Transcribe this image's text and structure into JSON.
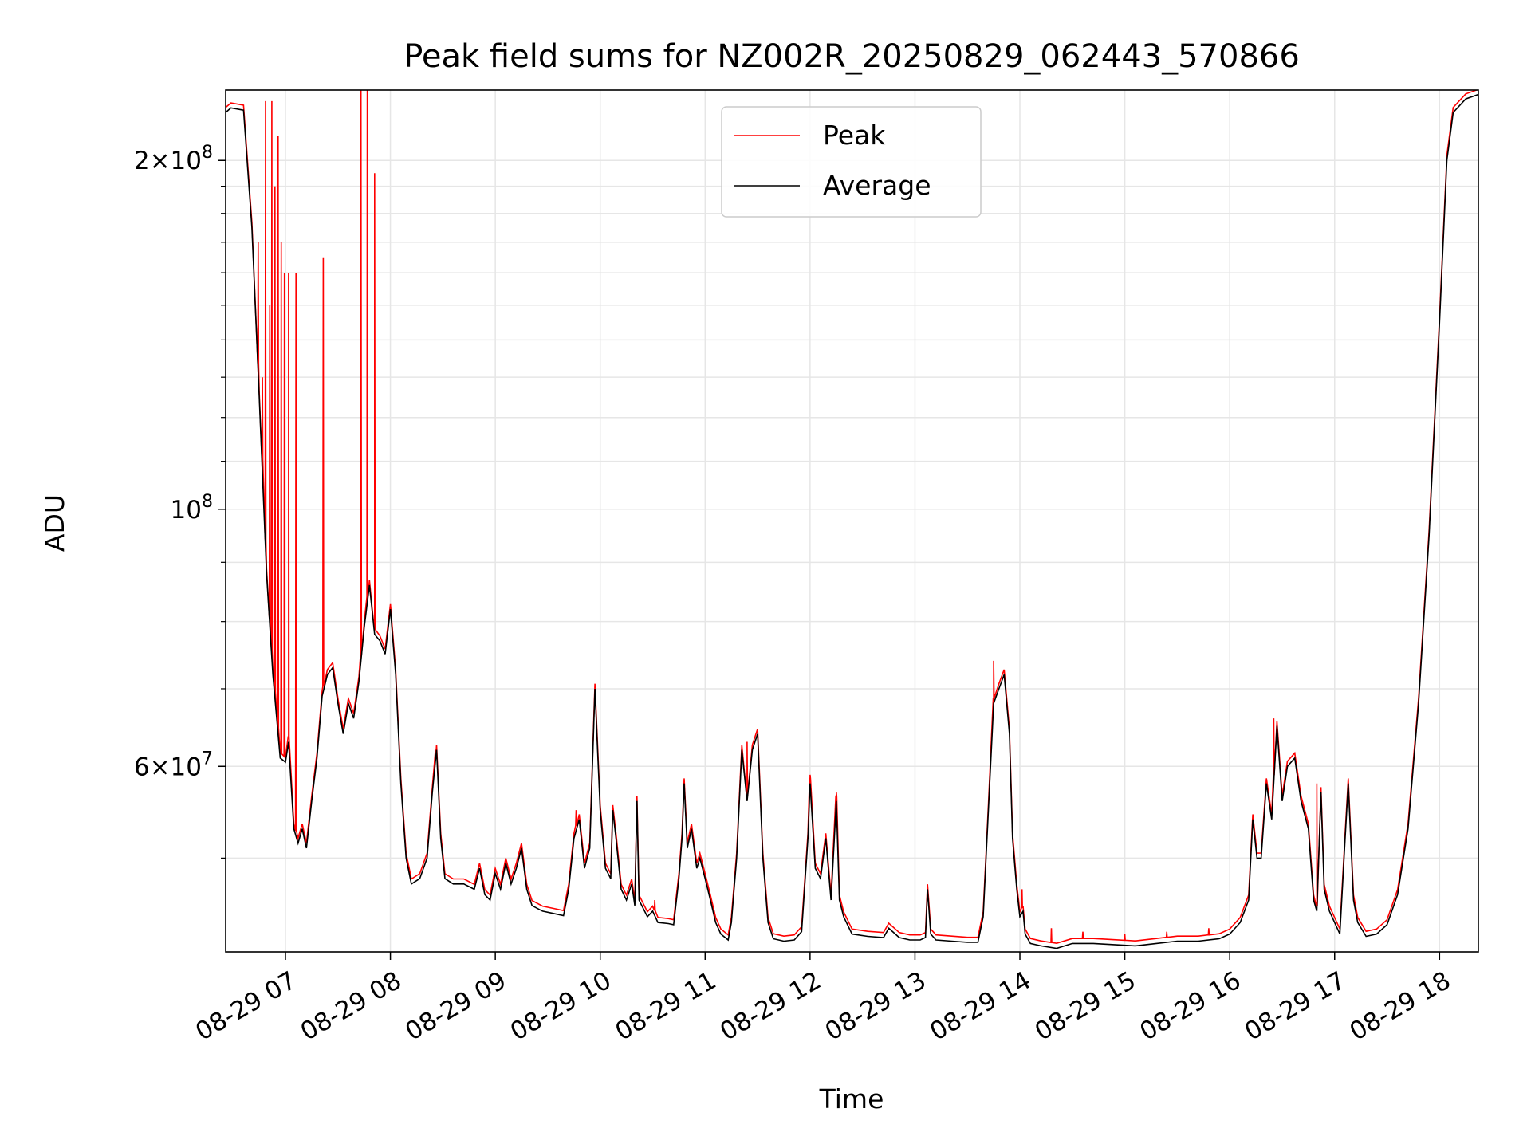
{
  "chart_data": {
    "type": "line",
    "title": "Peak field sums for NZ002R_20250829_062443_570866",
    "xlabel": "Time",
    "ylabel": "ADU",
    "x_ticks": [
      "08-29 07",
      "08-29 08",
      "08-29 09",
      "08-29 10",
      "08-29 11",
      "08-29 12",
      "08-29 13",
      "08-29 14",
      "08-29 15",
      "08-29 16",
      "08-29 17",
      "08-29 18"
    ],
    "y_scale": "log",
    "y_ticks": [
      {
        "value": 200000000,
        "base": "2×10",
        "exp": "8"
      },
      {
        "value": 100000000,
        "base": "10",
        "exp": "8"
      },
      {
        "value": 60000000,
        "base": "6×10",
        "exp": "7"
      }
    ],
    "xlim_hours": [
      6.43,
      18.37
    ],
    "ylim": [
      41500000,
      230000000
    ],
    "grid": true,
    "legend_position": "top-center",
    "series": [
      {
        "name": "Average",
        "color": "#000000",
        "points": [
          [
            6.43,
            220000000
          ],
          [
            6.48,
            222000000
          ],
          [
            6.6,
            221000000
          ],
          [
            6.68,
            175000000
          ],
          [
            6.75,
            125000000
          ],
          [
            6.82,
            88000000
          ],
          [
            6.88,
            72000000
          ],
          [
            6.95,
            61000000
          ],
          [
            7.0,
            60500000
          ],
          [
            7.03,
            63000000
          ],
          [
            7.08,
            53000000
          ],
          [
            7.12,
            51500000
          ],
          [
            7.16,
            53000000
          ],
          [
            7.2,
            51000000
          ],
          [
            7.25,
            56000000
          ],
          [
            7.3,
            61000000
          ],
          [
            7.35,
            69000000
          ],
          [
            7.4,
            72000000
          ],
          [
            7.45,
            73000000
          ],
          [
            7.5,
            68000000
          ],
          [
            7.55,
            64000000
          ],
          [
            7.6,
            68000000
          ],
          [
            7.65,
            66000000
          ],
          [
            7.7,
            71000000
          ],
          [
            7.75,
            79000000
          ],
          [
            7.8,
            86000000
          ],
          [
            7.85,
            78000000
          ],
          [
            7.9,
            77000000
          ],
          [
            7.95,
            75000000
          ],
          [
            8.0,
            82000000
          ],
          [
            8.05,
            72000000
          ],
          [
            8.1,
            58000000
          ],
          [
            8.15,
            50000000
          ],
          [
            8.2,
            47500000
          ],
          [
            8.28,
            48000000
          ],
          [
            8.35,
            50000000
          ],
          [
            8.4,
            57000000
          ],
          [
            8.44,
            62000000
          ],
          [
            8.48,
            52000000
          ],
          [
            8.52,
            48000000
          ],
          [
            8.6,
            47500000
          ],
          [
            8.7,
            47500000
          ],
          [
            8.8,
            47000000
          ],
          [
            8.85,
            49000000
          ],
          [
            8.9,
            46500000
          ],
          [
            8.95,
            46000000
          ],
          [
            9.0,
            48500000
          ],
          [
            9.05,
            47000000
          ],
          [
            9.1,
            49500000
          ],
          [
            9.15,
            47500000
          ],
          [
            9.2,
            49000000
          ],
          [
            9.25,
            51000000
          ],
          [
            9.3,
            47000000
          ],
          [
            9.35,
            45500000
          ],
          [
            9.45,
            45000000
          ],
          [
            9.55,
            44800000
          ],
          [
            9.65,
            44600000
          ],
          [
            9.7,
            47000000
          ],
          [
            9.75,
            52000000
          ],
          [
            9.8,
            54000000
          ],
          [
            9.85,
            49000000
          ],
          [
            9.9,
            51000000
          ],
          [
            9.95,
            70000000
          ],
          [
            10.0,
            55000000
          ],
          [
            10.05,
            49000000
          ],
          [
            10.1,
            48000000
          ],
          [
            10.12,
            55000000
          ],
          [
            10.15,
            52000000
          ],
          [
            10.2,
            47000000
          ],
          [
            10.25,
            46000000
          ],
          [
            10.3,
            47500000
          ],
          [
            10.33,
            45500000
          ],
          [
            10.35,
            56000000
          ],
          [
            10.37,
            46000000
          ],
          [
            10.45,
            44500000
          ],
          [
            10.5,
            45000000
          ],
          [
            10.55,
            44000000
          ],
          [
            10.65,
            43900000
          ],
          [
            10.7,
            43800000
          ],
          [
            10.75,
            48000000
          ],
          [
            10.78,
            52000000
          ],
          [
            10.8,
            58000000
          ],
          [
            10.83,
            51000000
          ],
          [
            10.87,
            53000000
          ],
          [
            10.92,
            49000000
          ],
          [
            10.95,
            50000000
          ],
          [
            11.0,
            48000000
          ],
          [
            11.05,
            46000000
          ],
          [
            11.1,
            44000000
          ],
          [
            11.15,
            43000000
          ],
          [
            11.22,
            42500000
          ],
          [
            11.25,
            44000000
          ],
          [
            11.3,
            50000000
          ],
          [
            11.35,
            62000000
          ],
          [
            11.4,
            56000000
          ],
          [
            11.45,
            62000000
          ],
          [
            11.5,
            64000000
          ],
          [
            11.55,
            50000000
          ],
          [
            11.6,
            44000000
          ],
          [
            11.65,
            42600000
          ],
          [
            11.75,
            42400000
          ],
          [
            11.85,
            42500000
          ],
          [
            11.92,
            43200000
          ],
          [
            11.98,
            52000000
          ],
          [
            12.0,
            58000000
          ],
          [
            12.05,
            49000000
          ],
          [
            12.1,
            48000000
          ],
          [
            12.15,
            52000000
          ],
          [
            12.2,
            46000000
          ],
          [
            12.25,
            56000000
          ],
          [
            12.28,
            46000000
          ],
          [
            12.32,
            44500000
          ],
          [
            12.4,
            43000000
          ],
          [
            12.55,
            42800000
          ],
          [
            12.7,
            42700000
          ],
          [
            12.75,
            43500000
          ],
          [
            12.85,
            42700000
          ],
          [
            12.95,
            42500000
          ],
          [
            13.05,
            42500000
          ],
          [
            13.1,
            42700000
          ],
          [
            13.12,
            47000000
          ],
          [
            13.15,
            43000000
          ],
          [
            13.2,
            42500000
          ],
          [
            13.35,
            42400000
          ],
          [
            13.5,
            42300000
          ],
          [
            13.6,
            42300000
          ],
          [
            13.65,
            44500000
          ],
          [
            13.7,
            55000000
          ],
          [
            13.75,
            68000000
          ],
          [
            13.8,
            70000000
          ],
          [
            13.85,
            72000000
          ],
          [
            13.9,
            64000000
          ],
          [
            13.93,
            52000000
          ],
          [
            13.97,
            47000000
          ],
          [
            14.0,
            44500000
          ],
          [
            14.03,
            45000000
          ],
          [
            14.05,
            43000000
          ],
          [
            14.1,
            42200000
          ],
          [
            14.2,
            42000000
          ],
          [
            14.35,
            41800000
          ],
          [
            14.5,
            42200000
          ],
          [
            14.7,
            42200000
          ],
          [
            14.9,
            42100000
          ],
          [
            15.1,
            42000000
          ],
          [
            15.3,
            42200000
          ],
          [
            15.5,
            42400000
          ],
          [
            15.7,
            42400000
          ],
          [
            15.9,
            42600000
          ],
          [
            16.0,
            43000000
          ],
          [
            16.1,
            44000000
          ],
          [
            16.18,
            46000000
          ],
          [
            16.22,
            54000000
          ],
          [
            16.26,
            50000000
          ],
          [
            16.3,
            50000000
          ],
          [
            16.35,
            58000000
          ],
          [
            16.4,
            54000000
          ],
          [
            16.45,
            65000000
          ],
          [
            16.5,
            56000000
          ],
          [
            16.55,
            60000000
          ],
          [
            16.62,
            61000000
          ],
          [
            16.68,
            56000000
          ],
          [
            16.75,
            53000000
          ],
          [
            16.8,
            46000000
          ],
          [
            16.83,
            45000000
          ],
          [
            16.87,
            57000000
          ],
          [
            16.9,
            47000000
          ],
          [
            16.95,
            45000000
          ],
          [
            17.0,
            44000000
          ],
          [
            17.05,
            43000000
          ],
          [
            17.1,
            52000000
          ],
          [
            17.13,
            58000000
          ],
          [
            17.18,
            46000000
          ],
          [
            17.22,
            44000000
          ],
          [
            17.3,
            42800000
          ],
          [
            17.4,
            43000000
          ],
          [
            17.5,
            43800000
          ],
          [
            17.6,
            46500000
          ],
          [
            17.7,
            53000000
          ],
          [
            17.8,
            68000000
          ],
          [
            17.9,
            95000000
          ],
          [
            18.0,
            145000000
          ],
          [
            18.07,
            200000000
          ],
          [
            18.13,
            220000000
          ],
          [
            18.25,
            226000000
          ],
          [
            18.37,
            228000000
          ]
        ]
      },
      {
        "name": "Peak",
        "color": "#ff0000",
        "spikes": [
          [
            6.74,
            170000000
          ],
          [
            6.78,
            130000000
          ],
          [
            6.81,
            225000000
          ],
          [
            6.85,
            150000000
          ],
          [
            6.87,
            225000000
          ],
          [
            6.9,
            190000000
          ],
          [
            6.93,
            210000000
          ],
          [
            6.96,
            170000000
          ],
          [
            6.99,
            160000000
          ],
          [
            7.03,
            160000000
          ],
          [
            7.1,
            160000000
          ],
          [
            7.36,
            165000000
          ],
          [
            7.72,
            230000000
          ],
          [
            7.78,
            230000000
          ],
          [
            7.85,
            195000000
          ],
          [
            8.43,
            62000000
          ],
          [
            9.77,
            55000000
          ],
          [
            10.52,
            46000000
          ],
          [
            11.4,
            63000000
          ],
          [
            12.0,
            59000000
          ],
          [
            12.25,
            57000000
          ],
          [
            13.75,
            74000000
          ],
          [
            14.02,
            47000000
          ],
          [
            14.3,
            43500000
          ],
          [
            14.6,
            43200000
          ],
          [
            15.0,
            43000000
          ],
          [
            15.4,
            43200000
          ],
          [
            15.8,
            43500000
          ],
          [
            16.42,
            66000000
          ],
          [
            16.83,
            58000000
          ]
        ]
      }
    ]
  }
}
